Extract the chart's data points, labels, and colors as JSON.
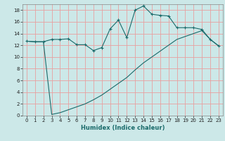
{
  "xlabel": "Humidex (Indice chaleur)",
  "bg_color": "#cce8e8",
  "grid_color": "#e8a0a0",
  "line_color": "#1a6b6b",
  "xlim": [
    -0.5,
    23.5
  ],
  "ylim": [
    0,
    19
  ],
  "xticks": [
    0,
    1,
    2,
    3,
    4,
    5,
    6,
    7,
    8,
    9,
    10,
    11,
    12,
    13,
    14,
    15,
    16,
    17,
    18,
    19,
    20,
    21,
    22,
    23
  ],
  "yticks": [
    0,
    2,
    4,
    6,
    8,
    10,
    12,
    14,
    16,
    18
  ],
  "line1_x": [
    0,
    1,
    2,
    3,
    4,
    5,
    6,
    7,
    8,
    9,
    10,
    11,
    12,
    13,
    14,
    15,
    16,
    17,
    18,
    19,
    20,
    21,
    22,
    23
  ],
  "line1_y": [
    12.7,
    12.6,
    12.6,
    13.0,
    13.0,
    13.1,
    12.1,
    12.1,
    11.1,
    11.6,
    14.8,
    16.3,
    13.3,
    18.0,
    18.7,
    17.3,
    17.1,
    17.0,
    15.0,
    15.0,
    15.0,
    14.7,
    13.0,
    11.9
  ],
  "line2_x": [
    0,
    1,
    2,
    3,
    4,
    5,
    6,
    7,
    8,
    9,
    10,
    11,
    12,
    13,
    14,
    15,
    16,
    17,
    18,
    19,
    20,
    21,
    22,
    23
  ],
  "line2_y": [
    12.7,
    12.6,
    12.6,
    0.2,
    0.5,
    1.0,
    1.5,
    2.0,
    2.7,
    3.5,
    4.5,
    5.5,
    6.5,
    7.8,
    9.0,
    10.0,
    11.0,
    12.0,
    13.0,
    13.5,
    14.0,
    14.5,
    13.0,
    11.9
  ],
  "tick_fontsize": 5.0,
  "xlabel_fontsize": 6.0
}
